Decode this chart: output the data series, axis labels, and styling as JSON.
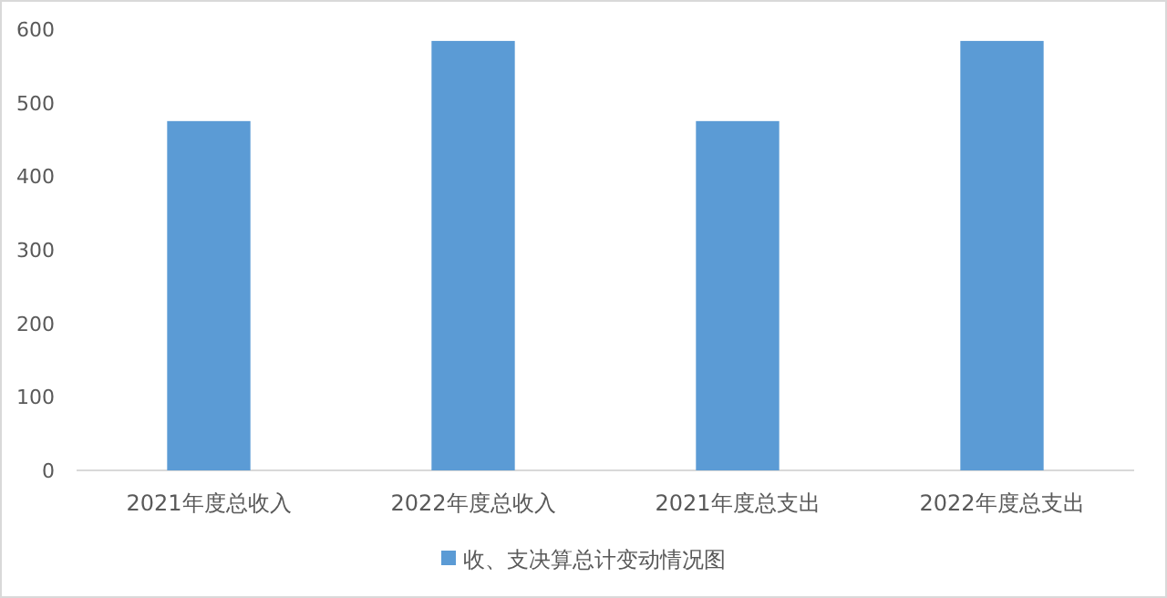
{
  "chart_data": {
    "type": "bar",
    "categories": [
      "2021年度总收入",
      "2022年度总收入",
      "2021年度总支出",
      "2022年度总支出"
    ],
    "series": [
      {
        "name": "收、支决算总计变动情况图",
        "color": "#5b9bd5",
        "values": [
          475,
          584,
          475,
          584
        ]
      }
    ],
    "ylim": [
      0,
      600
    ],
    "yticks": [
      0,
      100,
      200,
      300,
      400,
      500,
      600
    ],
    "grid": false,
    "legend": "bottom"
  }
}
